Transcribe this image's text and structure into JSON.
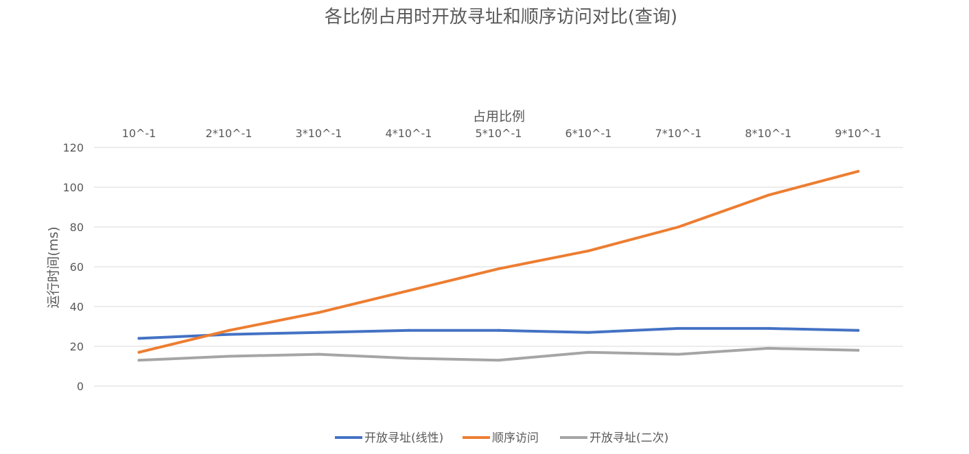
{
  "chart_data": {
    "type": "line",
    "title": "各比例占用时开放寻址和顺序访问对比(查询)",
    "xlabel": "占用比例",
    "ylabel": "运行时间(ms)",
    "categories": [
      "10^-1",
      "2*10^-1",
      "3*10^-1",
      "4*10^-1",
      "5*10^-1",
      "6*10^-1",
      "7*10^-1",
      "8*10^-1",
      "9*10^-1"
    ],
    "x_axis_position": "top",
    "ylim": [
      0,
      120
    ],
    "yticks": [
      "0",
      "20",
      "40",
      "60",
      "80",
      "100",
      "120"
    ],
    "grid": true,
    "legend_position": "bottom",
    "series": [
      {
        "name": "开放寻址(线性)",
        "color": "#4472c4",
        "values": [
          24,
          26,
          27,
          28,
          28,
          27,
          29,
          29,
          28
        ]
      },
      {
        "name": "顺序访问",
        "color": "#ed7d31",
        "values": [
          17,
          28,
          37,
          48,
          59,
          68,
          80,
          96,
          108
        ]
      },
      {
        "name": "开放寻址(二次)",
        "color": "#a5a5a5",
        "values": [
          13,
          15,
          16,
          14,
          13,
          17,
          16,
          19,
          18
        ]
      }
    ]
  }
}
